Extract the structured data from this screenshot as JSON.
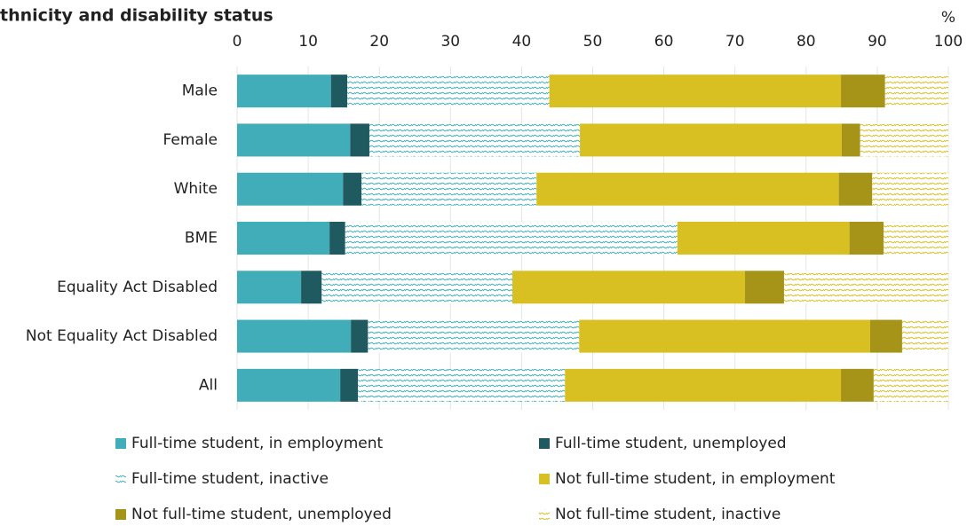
{
  "chart_data": {
    "type": "stacked_barh",
    "title": "thnicity and disability status",
    "unit": "%",
    "categories": [
      "Male",
      "Female",
      "White",
      "BME",
      "Equality Act Disabled",
      "Not Equality Act Disabled",
      "All"
    ],
    "series": [
      {
        "name": "Full-time student, in employment",
        "color": "#41adb8",
        "pattern": "solid",
        "values": [
          13.2,
          15.9,
          14.9,
          13.0,
          9.0,
          16.0,
          14.5
        ]
      },
      {
        "name": "Full-time student, unemployed",
        "color": "#1f5a60",
        "pattern": "solid",
        "values": [
          2.3,
          2.7,
          2.6,
          2.2,
          2.9,
          2.4,
          2.5
        ]
      },
      {
        "name": "Full-time student, inactive",
        "color": "#41adb8",
        "pattern": "wavy",
        "values": [
          28.4,
          29.6,
          24.6,
          46.7,
          26.8,
          29.7,
          29.1
        ]
      },
      {
        "name": "Not full-time student, in employment",
        "color": "#d8bf22",
        "pattern": "solid",
        "values": [
          41.0,
          36.8,
          42.5,
          24.2,
          32.7,
          40.9,
          38.8
        ]
      },
      {
        "name": "Not full-time student, unemployed",
        "color": "#a69419",
        "pattern": "solid",
        "values": [
          6.2,
          2.6,
          4.7,
          4.8,
          5.5,
          4.5,
          4.6
        ]
      },
      {
        "name": "Not full-time student, inactive",
        "color": "#d8bf22",
        "pattern": "wavy",
        "values": [
          8.9,
          12.4,
          10.7,
          9.1,
          23.1,
          6.5,
          10.5
        ]
      }
    ],
    "xlim": [
      0,
      100
    ],
    "xticks": [
      0,
      10,
      20,
      30,
      40,
      50,
      60,
      70,
      80,
      90,
      100
    ],
    "grid": true
  }
}
